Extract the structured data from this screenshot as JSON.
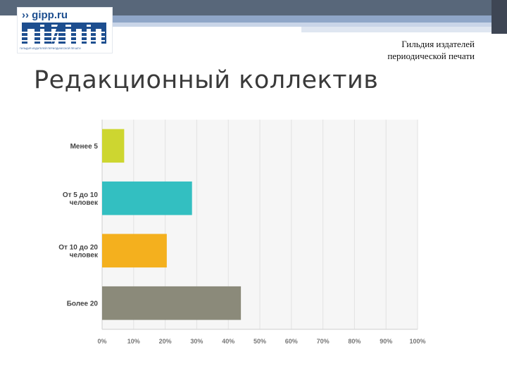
{
  "header": {
    "logo_url": "›› gipp.ru",
    "logo_subtitle": "ГИЛЬДИЯ ИЗДАТЕЛЕЙ ПЕРИОДИЧЕСКОЙ ПЕЧАТИ",
    "guild_line1": "Гильдия издателей",
    "guild_line2": "периодической печати"
  },
  "slide": {
    "title": "Редакционный коллектив"
  },
  "colors": {
    "brand": "#1d4e8f",
    "topbar": "#58677a"
  },
  "chart_data": {
    "type": "bar",
    "orientation": "horizontal",
    "categories": [
      [
        "Менее 5"
      ],
      [
        "От 5 до 10",
        "человек"
      ],
      [
        "От 10 до 20",
        "человек"
      ],
      [
        "Более 20"
      ]
    ],
    "values": [
      7,
      28.5,
      20.5,
      44
    ],
    "colors": [
      "#cdd630",
      "#33bfc1",
      "#f4b01e",
      "#8b8a7a"
    ],
    "xlim": [
      0,
      100
    ],
    "xticks": [
      "0%",
      "10%",
      "20%",
      "30%",
      "40%",
      "50%",
      "60%",
      "70%",
      "80%",
      "90%",
      "100%"
    ],
    "grid": true
  }
}
